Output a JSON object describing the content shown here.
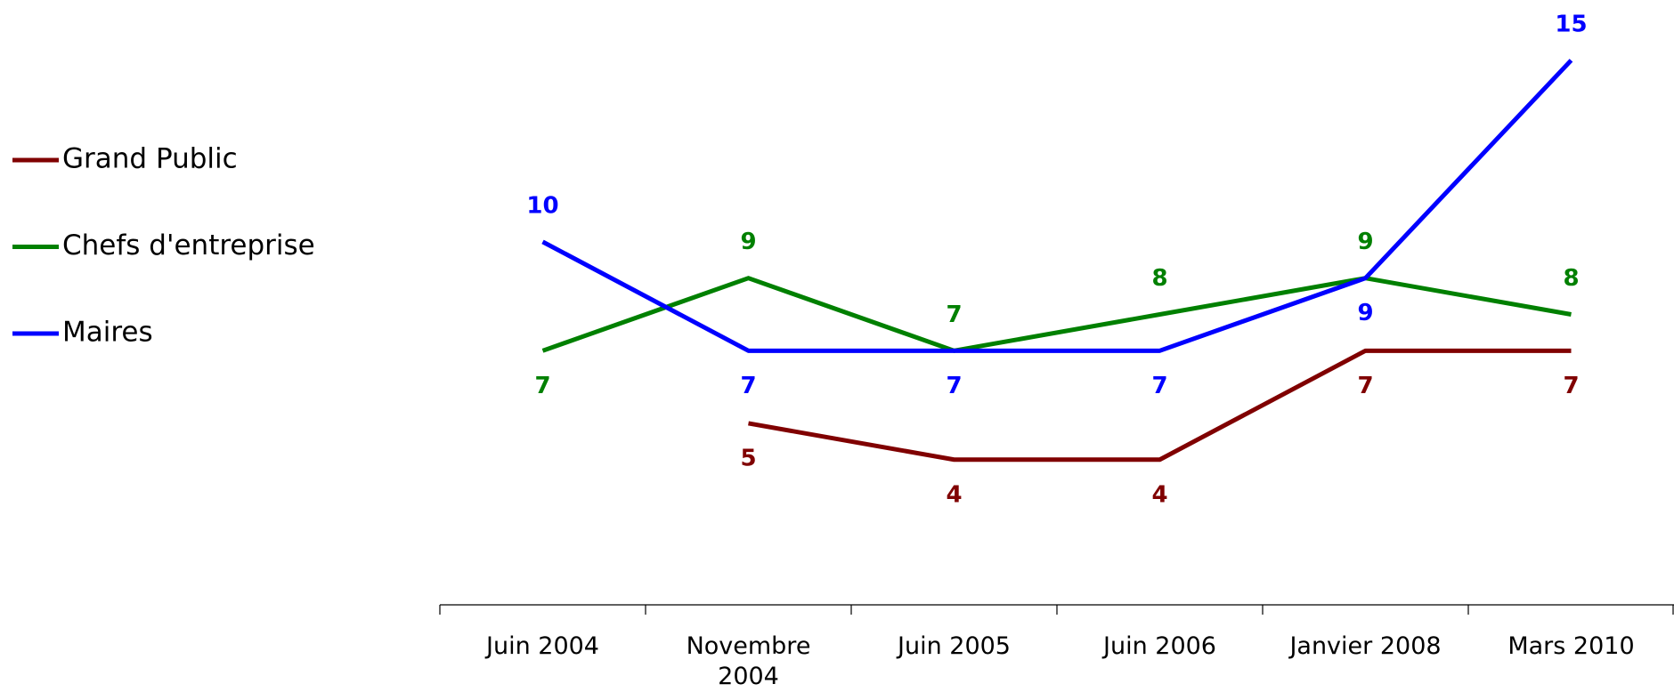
{
  "chart_data": {
    "type": "line",
    "categories": [
      "Juin 2004",
      "Novembre 2004",
      "Juin 2005",
      "Juin 2006",
      "Janvier 2008",
      "Mars 2010"
    ],
    "series": [
      {
        "name": "Grand Public",
        "color": "#800000",
        "values": [
          null,
          5,
          4,
          4,
          7,
          7
        ]
      },
      {
        "name": "Chefs d'entreprise",
        "color": "#008000",
        "values": [
          7,
          9,
          7,
          8,
          9,
          8
        ]
      },
      {
        "name": "Maires",
        "color": "#0000ff",
        "values": [
          10,
          7,
          7,
          7,
          9,
          15
        ]
      }
    ],
    "ylim": [
      0,
      16
    ],
    "legend": "left"
  }
}
